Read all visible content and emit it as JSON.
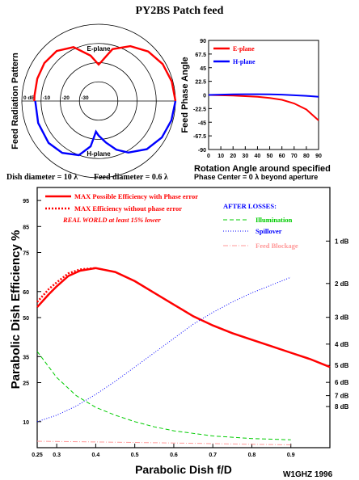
{
  "page": {
    "title": "PY2BS Patch feed",
    "credit": "W1GHZ 1996",
    "dish_note": "Dish diameter = 10 λ",
    "feed_note": "Feed diameter = 0.6 λ"
  },
  "chart_data": [
    {
      "id": "radiation-pattern",
      "type": "polar",
      "ylabel": "Feed Radiation Pattern",
      "ring_labels": [
        "0 dB",
        "-10",
        "-20",
        "-30"
      ],
      "ring_db": [
        0,
        -10,
        -20,
        -30
      ],
      "plane_labels": [
        "E-plane",
        "H-plane"
      ],
      "series": [
        {
          "name": "E-plane",
          "color": "#ff0000",
          "points": [
            [
              0,
              0
            ],
            [
              15,
              -0.6
            ],
            [
              30,
              -1.5
            ],
            [
              45,
              -3.5
            ],
            [
              60,
              -7
            ],
            [
              75,
              -12
            ],
            [
              80,
              -16
            ],
            [
              85,
              -19
            ],
            [
              90,
              -21
            ],
            [
              100,
              -16
            ],
            [
              115,
              -9
            ],
            [
              130,
              -6
            ],
            [
              145,
              -5.5
            ],
            [
              160,
              -6
            ],
            [
              175,
              -6.5
            ],
            [
              180,
              -6.5
            ]
          ]
        },
        {
          "name": "H-plane",
          "color": "#0000ff",
          "points": [
            [
              0,
              0
            ],
            [
              15,
              -0.8
            ],
            [
              30,
              -2
            ],
            [
              45,
              -4.5
            ],
            [
              60,
              -9
            ],
            [
              70,
              -13
            ],
            [
              80,
              -18
            ],
            [
              90,
              -22
            ],
            [
              95,
              -24
            ],
            [
              100,
              -16
            ],
            [
              110,
              -10
            ],
            [
              125,
              -7
            ],
            [
              140,
              -6
            ],
            [
              160,
              -6.5
            ],
            [
              180,
              -7
            ]
          ]
        }
      ]
    },
    {
      "id": "phase-angle",
      "type": "line",
      "ylabel": "Feed Phase Angle",
      "xlabel": "Rotation Angle around specified",
      "note": "Phase Center = 0 λ beyond aperture",
      "xlim": [
        0,
        90
      ],
      "ylim": [
        -90,
        90
      ],
      "x_ticks": [
        0,
        10,
        20,
        30,
        40,
        50,
        60,
        70,
        80,
        90
      ],
      "y_ticks": [
        90,
        67.5,
        45,
        22.5,
        0,
        -22.5,
        -45,
        -67.5,
        -90
      ],
      "y_tick_labels": [
        "90",
        "67.5",
        "45",
        "22.5",
        "0",
        "-22.5",
        "-45",
        "-67.5",
        "-90"
      ],
      "series": [
        {
          "name": "E-plane",
          "color": "#ff0000",
          "points": [
            [
              0,
              0
            ],
            [
              10,
              -0.5
            ],
            [
              20,
              -1
            ],
            [
              30,
              -2
            ],
            [
              40,
              -3
            ],
            [
              50,
              -5
            ],
            [
              60,
              -8
            ],
            [
              70,
              -14
            ],
            [
              80,
              -24
            ],
            [
              90,
              -42
            ]
          ]
        },
        {
          "name": "H-plane",
          "color": "#0000ff",
          "points": [
            [
              0,
              0
            ],
            [
              10,
              0.5
            ],
            [
              20,
              1
            ],
            [
              30,
              1.2
            ],
            [
              40,
              1.2
            ],
            [
              50,
              1
            ],
            [
              60,
              0.5
            ],
            [
              70,
              -0.5
            ],
            [
              80,
              -1.5
            ],
            [
              90,
              -3
            ]
          ]
        }
      ]
    },
    {
      "id": "efficiency",
      "type": "line",
      "ylabel": "Parabolic Dish Efficiency %",
      "xlabel": "Parabolic Dish f/D",
      "xlim": [
        0.25,
        1.0
      ],
      "ylim": [
        0,
        100
      ],
      "x_ticks": [
        0.25,
        0.3,
        0.4,
        0.5,
        0.6,
        0.7,
        0.8,
        0.9
      ],
      "x_tick_labels": [
        "0.25",
        "0.3",
        "0.4",
        "0.5",
        "0.6",
        "0.7",
        "0.8",
        "0.9"
      ],
      "y_ticks": [
        10,
        25,
        35,
        50,
        60,
        75,
        85,
        95
      ],
      "y_tick_labels": [
        "10",
        "25",
        "35",
        "50",
        "60",
        "75",
        "85",
        "95"
      ],
      "db_ticks": [
        {
          "label": "1 dB",
          "value": 79.4
        },
        {
          "label": "2 dB",
          "value": 63.1
        },
        {
          "label": "3 dB",
          "value": 50.1
        },
        {
          "label": "4 dB",
          "value": 39.8
        },
        {
          "label": "5 dB",
          "value": 31.6
        },
        {
          "label": "6 dB",
          "value": 25.1
        },
        {
          "label": "7 dB",
          "value": 20
        },
        {
          "label": "8 dB",
          "value": 15.8
        }
      ],
      "legend": {
        "max_phase": "MAX Possible Efficiency with Phase error",
        "max_no_phase": "MAX Efficiency without phase error",
        "real_world": "REAL WORLD at least 15% lower",
        "after_losses": "AFTER LOSSES:",
        "illumination": "Illumination",
        "spillover": "Spillover",
        "blockage": "Feed Blockage"
      },
      "series": [
        {
          "name": "MAX Possible Efficiency with Phase error",
          "color": "#ff0000",
          "style": "solid",
          "points": [
            [
              0.25,
              54
            ],
            [
              0.28,
              59
            ],
            [
              0.3,
              62
            ],
            [
              0.33,
              66
            ],
            [
              0.36,
              68
            ],
            [
              0.4,
              69
            ],
            [
              0.45,
              67.5
            ],
            [
              0.5,
              64
            ],
            [
              0.55,
              59.5
            ],
            [
              0.6,
              55
            ],
            [
              0.65,
              50.5
            ],
            [
              0.7,
              47
            ],
            [
              0.75,
              44
            ],
            [
              0.8,
              41.5
            ],
            [
              0.85,
              39
            ],
            [
              0.9,
              36.5
            ],
            [
              0.95,
              34
            ],
            [
              1.0,
              31
            ]
          ]
        },
        {
          "name": "MAX Efficiency without phase error",
          "color": "#ff0000",
          "style": "dotted",
          "points": [
            [
              0.25,
              56
            ],
            [
              0.28,
              61
            ],
            [
              0.3,
              63.5
            ],
            [
              0.33,
              67
            ],
            [
              0.36,
              68.5
            ],
            [
              0.4,
              69
            ]
          ]
        },
        {
          "name": "Illumination",
          "color": "#00cc00",
          "style": "dashed",
          "points": [
            [
              0.25,
              37
            ],
            [
              0.28,
              31
            ],
            [
              0.3,
              27
            ],
            [
              0.35,
              20
            ],
            [
              0.4,
              15.5
            ],
            [
              0.45,
              12.5
            ],
            [
              0.5,
              10
            ],
            [
              0.55,
              8
            ],
            [
              0.6,
              6.5
            ],
            [
              0.7,
              4.5
            ],
            [
              0.8,
              3.5
            ],
            [
              0.9,
              3
            ]
          ]
        },
        {
          "name": "Spillover",
          "color": "#0000ff",
          "style": "dotted",
          "points": [
            [
              0.25,
              10
            ],
            [
              0.3,
              12.5
            ],
            [
              0.35,
              16
            ],
            [
              0.4,
              20.5
            ],
            [
              0.45,
              25.5
            ],
            [
              0.5,
              31
            ],
            [
              0.55,
              36.5
            ],
            [
              0.6,
              42
            ],
            [
              0.65,
              47.5
            ],
            [
              0.7,
              52
            ],
            [
              0.75,
              56
            ],
            [
              0.8,
              59.5
            ],
            [
              0.85,
              62.5
            ],
            [
              0.9,
              65.5
            ]
          ]
        },
        {
          "name": "Feed Blockage",
          "color": "#ff9999",
          "style": "dashdot",
          "points": [
            [
              0.25,
              2.5
            ],
            [
              0.4,
              2.2
            ],
            [
              0.6,
              1.8
            ],
            [
              0.8,
              1.3
            ],
            [
              0.9,
              1.1
            ]
          ]
        }
      ]
    }
  ]
}
